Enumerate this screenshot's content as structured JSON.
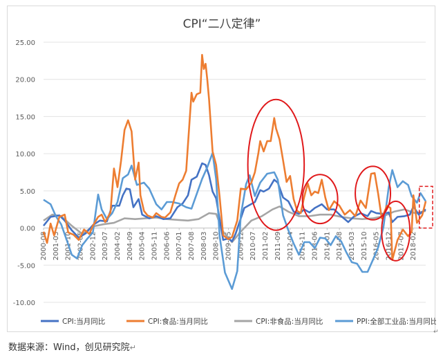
{
  "chart_data": {
    "type": "line",
    "title": "CPI“二八定律”",
    "ylim": [
      -10,
      25
    ],
    "yticks": [
      "25.00",
      "20.00",
      "15.00",
      "10.00",
      "5.00",
      "0.00",
      "-5.00",
      "-10.00"
    ],
    "xticks": [
      "2000-08",
      "2001-03",
      "2001-10",
      "2002-05",
      "2002-12",
      "2003-07",
      "2004-02",
      "2004-09",
      "2005-04",
      "2005-11",
      "2006-06",
      "2007-01",
      "2007-08",
      "2008-03",
      "2008-10",
      "2009-05",
      "2009-12",
      "2010-07",
      "2011-02",
      "2011-09",
      "2012-04",
      "2012-11",
      "2013-06",
      "2014-01",
      "2014-08",
      "2015-03",
      "2015-10",
      "2016-05",
      "2016-12",
      "2017-07",
      "2018-02"
    ],
    "x_start": "2000-08",
    "x_end": "2018-09",
    "grid": true,
    "legend_position": "bottom",
    "series": [
      {
        "name": "CPI:当月同比",
        "color": "#4472c4",
        "points": [
          [
            "2000-08",
            0.3
          ],
          [
            "2000-12",
            1.5
          ],
          [
            "2001-05",
            1.7
          ],
          [
            "2001-08",
            1.0
          ],
          [
            "2001-12",
            -0.3
          ],
          [
            "2002-04",
            -1.3
          ],
          [
            "2002-08",
            -0.7
          ],
          [
            "2002-12",
            0.4
          ],
          [
            "2003-04",
            1.0
          ],
          [
            "2003-08",
            0.9
          ],
          [
            "2003-11",
            3.0
          ],
          [
            "2004-03",
            3.0
          ],
          [
            "2004-05",
            4.4
          ],
          [
            "2004-07",
            5.3
          ],
          [
            "2004-09",
            5.2
          ],
          [
            "2004-11",
            2.8
          ],
          [
            "2005-02",
            3.9
          ],
          [
            "2005-04",
            1.8
          ],
          [
            "2005-08",
            1.3
          ],
          [
            "2005-12",
            1.6
          ],
          [
            "2006-04",
            1.2
          ],
          [
            "2006-08",
            1.3
          ],
          [
            "2006-12",
            2.8
          ],
          [
            "2007-03",
            3.3
          ],
          [
            "2007-06",
            4.4
          ],
          [
            "2007-08",
            6.5
          ],
          [
            "2007-11",
            6.9
          ],
          [
            "2008-02",
            8.7
          ],
          [
            "2008-04",
            8.5
          ],
          [
            "2008-06",
            7.1
          ],
          [
            "2008-08",
            4.9
          ],
          [
            "2008-10",
            4.0
          ],
          [
            "2008-12",
            1.2
          ],
          [
            "2009-02",
            -1.6
          ],
          [
            "2009-05",
            -1.4
          ],
          [
            "2009-07",
            -1.8
          ],
          [
            "2009-09",
            -0.8
          ],
          [
            "2009-11",
            0.6
          ],
          [
            "2010-02",
            2.7
          ],
          [
            "2010-05",
            3.1
          ],
          [
            "2010-08",
            3.5
          ],
          [
            "2010-11",
            5.1
          ],
          [
            "2011-01",
            4.9
          ],
          [
            "2011-04",
            5.3
          ],
          [
            "2011-07",
            6.5
          ],
          [
            "2011-09",
            6.1
          ],
          [
            "2011-12",
            4.1
          ],
          [
            "2012-03",
            3.6
          ],
          [
            "2012-06",
            2.2
          ],
          [
            "2012-09",
            1.9
          ],
          [
            "2012-12",
            2.5
          ],
          [
            "2013-03",
            2.1
          ],
          [
            "2013-06",
            2.7
          ],
          [
            "2013-10",
            3.2
          ],
          [
            "2014-01",
            2.5
          ],
          [
            "2014-05",
            2.5
          ],
          [
            "2014-09",
            1.6
          ],
          [
            "2015-01",
            0.8
          ],
          [
            "2015-04",
            1.5
          ],
          [
            "2015-08",
            2.0
          ],
          [
            "2015-12",
            1.6
          ],
          [
            "2016-02",
            2.3
          ],
          [
            "2016-05",
            2.0
          ],
          [
            "2016-09",
            1.9
          ],
          [
            "2016-12",
            2.1
          ],
          [
            "2017-02",
            0.8
          ],
          [
            "2017-05",
            1.5
          ],
          [
            "2017-09",
            1.6
          ],
          [
            "2017-12",
            1.8
          ],
          [
            "2018-02",
            2.9
          ],
          [
            "2018-05",
            1.8
          ],
          [
            "2018-09",
            2.5
          ]
        ]
      },
      {
        "name": "CPI:食品:当月同比",
        "color": "#ed7d31",
        "points": [
          [
            "2000-08",
            -0.5
          ],
          [
            "2000-10",
            -2.0
          ],
          [
            "2000-12",
            0.6
          ],
          [
            "2001-02",
            -1.0
          ],
          [
            "2001-05",
            1.5
          ],
          [
            "2001-08",
            1.8
          ],
          [
            "2001-10",
            -0.6
          ],
          [
            "2002-01",
            -0.9
          ],
          [
            "2002-04",
            -1.6
          ],
          [
            "2002-07",
            -0.2
          ],
          [
            "2002-10",
            -0.8
          ],
          [
            "2002-12",
            0.3
          ],
          [
            "2003-03",
            1.5
          ],
          [
            "2003-05",
            1.8
          ],
          [
            "2003-07",
            0.8
          ],
          [
            "2003-10",
            2.1
          ],
          [
            "2003-12",
            8.0
          ],
          [
            "2004-02",
            5.5
          ],
          [
            "2004-04",
            9.0
          ],
          [
            "2004-06",
            13.2
          ],
          [
            "2004-08",
            14.5
          ],
          [
            "2004-10",
            13.0
          ],
          [
            "2004-12",
            6.5
          ],
          [
            "2005-02",
            8.8
          ],
          [
            "2005-03",
            4.4
          ],
          [
            "2005-05",
            2.3
          ],
          [
            "2005-07",
            1.7
          ],
          [
            "2005-10",
            1.4
          ],
          [
            "2005-12",
            2.0
          ],
          [
            "2006-03",
            1.5
          ],
          [
            "2006-05",
            1.4
          ],
          [
            "2006-08",
            2.1
          ],
          [
            "2006-11",
            4.5
          ],
          [
            "2007-01",
            6.0
          ],
          [
            "2007-03",
            6.5
          ],
          [
            "2007-05",
            7.7
          ],
          [
            "2007-08",
            18.2
          ],
          [
            "2007-09",
            17.0
          ],
          [
            "2007-11",
            18.0
          ],
          [
            "2008-01",
            18.2
          ],
          [
            "2008-02",
            23.3
          ],
          [
            "2008-03",
            21.4
          ],
          [
            "2008-04",
            22.1
          ],
          [
            "2008-05",
            19.9
          ],
          [
            "2008-06",
            17.3
          ],
          [
            "2008-08",
            10.3
          ],
          [
            "2008-10",
            8.5
          ],
          [
            "2008-12",
            4.2
          ],
          [
            "2009-02",
            -1.0
          ],
          [
            "2009-05",
            -1.5
          ],
          [
            "2009-07",
            -1.2
          ],
          [
            "2009-10",
            1.0
          ],
          [
            "2009-12",
            5.3
          ],
          [
            "2010-03",
            5.2
          ],
          [
            "2010-06",
            6.1
          ],
          [
            "2010-08",
            7.5
          ],
          [
            "2010-10",
            10.1
          ],
          [
            "2010-11",
            11.7
          ],
          [
            "2011-01",
            10.3
          ],
          [
            "2011-03",
            11.7
          ],
          [
            "2011-05",
            11.7
          ],
          [
            "2011-07",
            14.8
          ],
          [
            "2011-08",
            13.4
          ],
          [
            "2011-10",
            11.9
          ],
          [
            "2011-12",
            9.1
          ],
          [
            "2012-02",
            6.2
          ],
          [
            "2012-04",
            7.0
          ],
          [
            "2012-06",
            3.9
          ],
          [
            "2012-08",
            2.3
          ],
          [
            "2012-10",
            2.0
          ],
          [
            "2012-12",
            4.2
          ],
          [
            "2013-02",
            6.0
          ],
          [
            "2013-04",
            4.4
          ],
          [
            "2013-06",
            4.9
          ],
          [
            "2013-08",
            4.7
          ],
          [
            "2013-10",
            6.5
          ],
          [
            "2013-12",
            4.1
          ],
          [
            "2014-02",
            2.4
          ],
          [
            "2014-05",
            3.6
          ],
          [
            "2014-08",
            3.0
          ],
          [
            "2014-11",
            1.8
          ],
          [
            "2015-02",
            2.4
          ],
          [
            "2015-05",
            1.6
          ],
          [
            "2015-08",
            3.7
          ],
          [
            "2015-11",
            2.7
          ],
          [
            "2016-02",
            7.3
          ],
          [
            "2016-04",
            7.4
          ],
          [
            "2016-06",
            4.6
          ],
          [
            "2016-08",
            1.3
          ],
          [
            "2016-11",
            3.0
          ],
          [
            "2017-01",
            2.7
          ],
          [
            "2017-02",
            -4.3
          ],
          [
            "2017-05",
            -1.6
          ],
          [
            "2017-08",
            -0.2
          ],
          [
            "2017-11",
            -1.1
          ],
          [
            "2018-01",
            -0.5
          ],
          [
            "2018-02",
            4.4
          ],
          [
            "2018-04",
            0.7
          ],
          [
            "2018-07",
            1.7
          ],
          [
            "2018-09",
            3.6
          ]
        ]
      },
      {
        "name": "CPI:非食品:当月同比",
        "color": "#a5a5a5",
        "points": [
          [
            "2000-08",
            1.0
          ],
          [
            "2001-01",
            1.8
          ],
          [
            "2001-06",
            1.6
          ],
          [
            "2001-12",
            0.3
          ],
          [
            "2002-06",
            -0.8
          ],
          [
            "2002-12",
            0.2
          ],
          [
            "2003-06",
            0.5
          ],
          [
            "2003-12",
            0.7
          ],
          [
            "2004-06",
            1.3
          ],
          [
            "2004-12",
            1.2
          ],
          [
            "2005-06",
            1.3
          ],
          [
            "2005-12",
            1.4
          ],
          [
            "2006-06",
            1.2
          ],
          [
            "2006-12",
            1.1
          ],
          [
            "2007-06",
            1.0
          ],
          [
            "2007-12",
            1.2
          ],
          [
            "2008-06",
            2.0
          ],
          [
            "2008-10",
            1.9
          ],
          [
            "2009-02",
            -0.5
          ],
          [
            "2009-07",
            -1.9
          ],
          [
            "2009-12",
            -0.5
          ],
          [
            "2010-06",
            1.0
          ],
          [
            "2010-12",
            1.6
          ],
          [
            "2011-06",
            2.5
          ],
          [
            "2011-10",
            2.9
          ],
          [
            "2012-03",
            2.2
          ],
          [
            "2012-09",
            1.6
          ],
          [
            "2013-03",
            1.6
          ],
          [
            "2013-09",
            1.8
          ],
          [
            "2014-03",
            1.8
          ],
          [
            "2014-09",
            1.5
          ],
          [
            "2015-03",
            1.3
          ],
          [
            "2015-09",
            1.2
          ],
          [
            "2016-03",
            1.3
          ],
          [
            "2016-09",
            1.6
          ],
          [
            "2017-03",
            2.2
          ],
          [
            "2017-09",
            2.5
          ],
          [
            "2018-03",
            2.0
          ],
          [
            "2018-09",
            2.3
          ]
        ]
      },
      {
        "name": "PPI:全部工业品:当月同比",
        "color": "#5b9bd5",
        "points": [
          [
            "2000-08",
            3.8
          ],
          [
            "2000-12",
            3.2
          ],
          [
            "2001-03",
            1.6
          ],
          [
            "2001-06",
            0.5
          ],
          [
            "2001-09",
            -1.5
          ],
          [
            "2001-12",
            -3.6
          ],
          [
            "2002-03",
            -4.1
          ],
          [
            "2002-06",
            -2.3
          ],
          [
            "2002-09",
            -1.4
          ],
          [
            "2002-12",
            -0.6
          ],
          [
            "2003-03",
            4.5
          ],
          [
            "2003-05",
            2.5
          ],
          [
            "2003-08",
            1.2
          ],
          [
            "2003-11",
            2.0
          ],
          [
            "2004-02",
            3.5
          ],
          [
            "2004-05",
            6.7
          ],
          [
            "2004-08",
            7.2
          ],
          [
            "2004-10",
            8.4
          ],
          [
            "2005-01",
            5.8
          ],
          [
            "2005-05",
            6.1
          ],
          [
            "2005-08",
            5.3
          ],
          [
            "2005-12",
            3.2
          ],
          [
            "2006-03",
            2.5
          ],
          [
            "2006-06",
            3.5
          ],
          [
            "2006-09",
            3.5
          ],
          [
            "2007-01",
            3.3
          ],
          [
            "2007-05",
            2.8
          ],
          [
            "2007-08",
            2.6
          ],
          [
            "2007-11",
            4.6
          ],
          [
            "2008-02",
            6.6
          ],
          [
            "2008-05",
            8.2
          ],
          [
            "2008-08",
            10.1
          ],
          [
            "2008-10",
            6.6
          ],
          [
            "2008-12",
            -1.1
          ],
          [
            "2009-03",
            -6.0
          ],
          [
            "2009-07",
            -8.2
          ],
          [
            "2009-10",
            -5.8
          ],
          [
            "2009-12",
            1.7
          ],
          [
            "2010-03",
            5.9
          ],
          [
            "2010-05",
            7.1
          ],
          [
            "2010-08",
            4.3
          ],
          [
            "2010-11",
            6.1
          ],
          [
            "2011-03",
            7.3
          ],
          [
            "2011-07",
            7.5
          ],
          [
            "2011-09",
            6.5
          ],
          [
            "2011-12",
            1.7
          ],
          [
            "2012-03",
            -0.3
          ],
          [
            "2012-06",
            -2.1
          ],
          [
            "2012-09",
            -3.6
          ],
          [
            "2012-12",
            -1.9
          ],
          [
            "2013-03",
            -1.9
          ],
          [
            "2013-06",
            -2.7
          ],
          [
            "2013-09",
            -1.3
          ],
          [
            "2013-12",
            -1.4
          ],
          [
            "2014-03",
            -2.3
          ],
          [
            "2014-06",
            -1.1
          ],
          [
            "2014-09",
            -1.8
          ],
          [
            "2014-12",
            -3.3
          ],
          [
            "2015-03",
            -4.6
          ],
          [
            "2015-06",
            -4.8
          ],
          [
            "2015-09",
            -5.9
          ],
          [
            "2015-12",
            -5.9
          ],
          [
            "2016-03",
            -4.3
          ],
          [
            "2016-06",
            -2.6
          ],
          [
            "2016-09",
            0.1
          ],
          [
            "2016-12",
            5.5
          ],
          [
            "2017-02",
            7.8
          ],
          [
            "2017-05",
            5.5
          ],
          [
            "2017-08",
            6.3
          ],
          [
            "2017-11",
            5.8
          ],
          [
            "2018-01",
            4.3
          ],
          [
            "2018-04",
            3.4
          ],
          [
            "2018-06",
            4.7
          ],
          [
            "2018-09",
            3.6
          ]
        ]
      }
    ]
  },
  "source_note": "数据来源：Wind，创见研究院",
  "source_mark": "↵"
}
